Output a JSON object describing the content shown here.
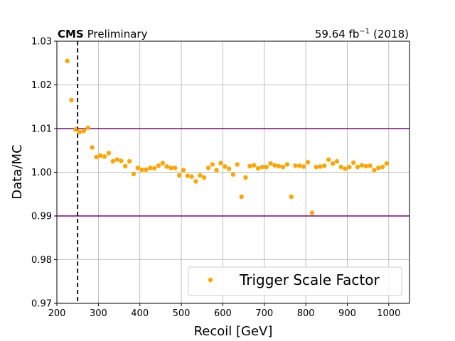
{
  "chart_data": {
    "type": "scatter",
    "header_left_bold": "CMS",
    "header_left_rest": "Preliminary",
    "header_right": "59.64 fb",
    "header_right_sup": "−1",
    "header_right_tail": "(2018)",
    "xlabel": "Recoil [GeV]",
    "ylabel": "Data/MC",
    "xlim": [
      200,
      1050
    ],
    "ylim": [
      0.97,
      1.03
    ],
    "xticks": [
      200,
      300,
      400,
      500,
      600,
      700,
      800,
      900,
      1000
    ],
    "yticks": [
      0.97,
      0.98,
      0.99,
      1.0,
      1.01,
      1.02,
      1.03
    ],
    "xtick_labels": [
      "200",
      "300",
      "400",
      "500",
      "600",
      "700",
      "800",
      "900",
      "1000"
    ],
    "ytick_labels": [
      "0.97",
      "0.98",
      "0.99",
      "1.00",
      "1.01",
      "1.02",
      "1.03"
    ],
    "grid": true,
    "legend_position": "lower-right",
    "horizontal_lines": [
      {
        "y": 1.01,
        "color": "#800080",
        "style": "solid"
      },
      {
        "y": 0.99,
        "color": "#800080",
        "style": "solid"
      }
    ],
    "vertical_lines": [
      {
        "x": 250,
        "color": "#000000",
        "style": "dashed"
      }
    ],
    "series": [
      {
        "name": "Trigger Scale Factor",
        "color": "#ffa500",
        "marker": "circle",
        "points": [
          [
            225,
            1.0255
          ],
          [
            235,
            1.0165
          ],
          [
            245,
            1.0098
          ],
          [
            255,
            1.0092
          ],
          [
            265,
            1.0095
          ],
          [
            275,
            1.0102
          ],
          [
            285,
            1.0057
          ],
          [
            295,
            1.0035
          ],
          [
            305,
            1.0038
          ],
          [
            315,
            1.0036
          ],
          [
            325,
            1.0044
          ],
          [
            335,
            1.0025
          ],
          [
            345,
            1.0029
          ],
          [
            355,
            1.0026
          ],
          [
            365,
            1.0014
          ],
          [
            375,
            1.0025
          ],
          [
            385,
            0.9996
          ],
          [
            395,
            1.001
          ],
          [
            405,
            1.0006
          ],
          [
            415,
            1.0006
          ],
          [
            425,
            1.001
          ],
          [
            435,
            1.0009
          ],
          [
            445,
            1.0015
          ],
          [
            455,
            1.0021
          ],
          [
            465,
            1.0013
          ],
          [
            475,
            1.001
          ],
          [
            485,
            1.001
          ],
          [
            495,
            0.9993
          ],
          [
            505,
            1.0005
          ],
          [
            515,
            0.9992
          ],
          [
            525,
            0.999
          ],
          [
            535,
            0.9979
          ],
          [
            545,
            0.9993
          ],
          [
            555,
            0.9988
          ],
          [
            565,
            1.001
          ],
          [
            575,
            1.0018
          ],
          [
            585,
            1.0005
          ],
          [
            595,
            1.0021
          ],
          [
            605,
            1.0013
          ],
          [
            615,
            1.0008
          ],
          [
            625,
            0.9995
          ],
          [
            635,
            1.0018
          ],
          [
            645,
            0.9944
          ],
          [
            655,
            0.9988
          ],
          [
            665,
            1.0014
          ],
          [
            675,
            1.0016
          ],
          [
            685,
            1.0009
          ],
          [
            695,
            1.0012
          ],
          [
            705,
            1.0012
          ],
          [
            715,
            1.002
          ],
          [
            725,
            1.0016
          ],
          [
            735,
            1.0014
          ],
          [
            745,
            1.0012
          ],
          [
            755,
            1.0018
          ],
          [
            765,
            0.9944
          ],
          [
            775,
            1.0015
          ],
          [
            785,
            1.0015
          ],
          [
            795,
            1.0013
          ],
          [
            805,
            1.0023
          ],
          [
            815,
            0.9907
          ],
          [
            825,
            1.0012
          ],
          [
            835,
            1.0013
          ],
          [
            845,
            1.0015
          ],
          [
            855,
            1.0029
          ],
          [
            865,
            1.002
          ],
          [
            875,
            1.0025
          ],
          [
            885,
            1.0012
          ],
          [
            895,
            1.0008
          ],
          [
            905,
            1.0012
          ],
          [
            915,
            1.0022
          ],
          [
            925,
            1.0012
          ],
          [
            935,
            1.0016
          ],
          [
            945,
            1.0014
          ],
          [
            955,
            1.0015
          ],
          [
            965,
            1.0005
          ],
          [
            975,
            1.001
          ],
          [
            985,
            1.0012
          ],
          [
            995,
            1.002
          ]
        ]
      }
    ]
  }
}
